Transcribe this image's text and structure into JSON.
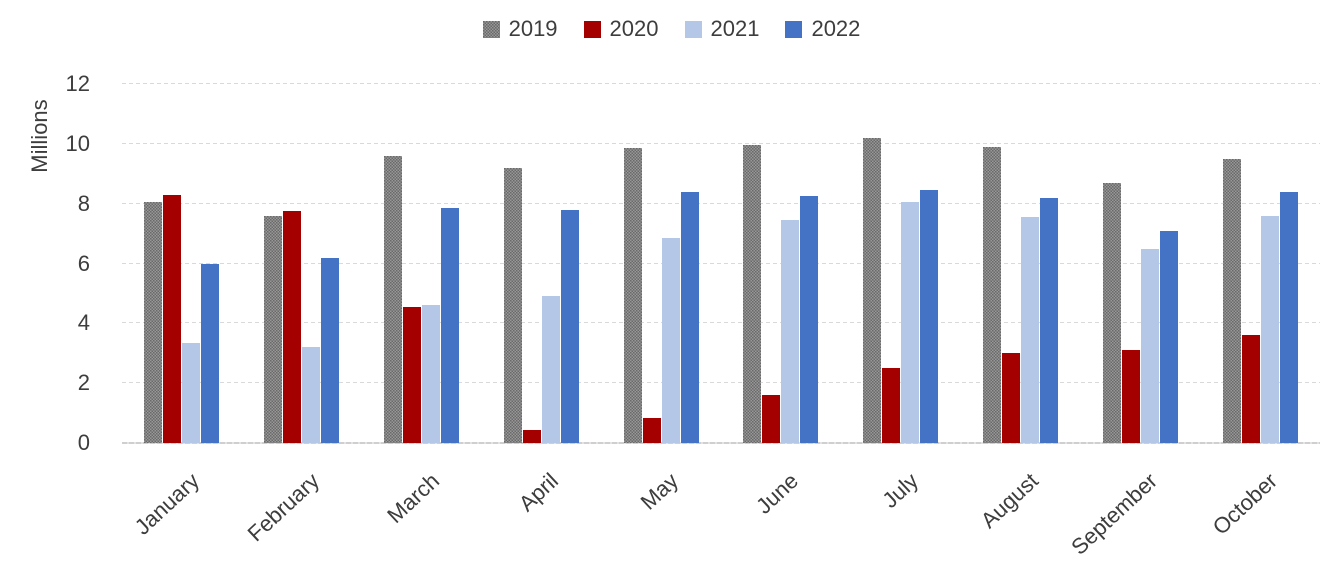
{
  "chart_data": {
    "type": "bar",
    "title": "",
    "xlabel": "",
    "ylabel": "Millions",
    "ylim": [
      0,
      12
    ],
    "yticks": [
      0,
      2,
      4,
      6,
      8,
      10,
      12
    ],
    "grid": true,
    "legend_position": "top-center",
    "gridline_color": "#D9D9D9",
    "text_color": "#3D3D3D",
    "categories": [
      "January",
      "February",
      "March",
      "April",
      "May",
      "June",
      "July",
      "August",
      "September",
      "October"
    ],
    "series": [
      {
        "name": "2019",
        "color": "#7F7F7F",
        "pattern": "dither",
        "values": [
          8.05,
          7.6,
          9.6,
          9.2,
          9.85,
          9.95,
          10.2,
          9.9,
          8.7,
          9.5
        ]
      },
      {
        "name": "2020",
        "color": "#A40000",
        "pattern": null,
        "values": [
          8.3,
          7.75,
          4.55,
          0.45,
          0.85,
          1.6,
          2.5,
          3.0,
          3.1,
          3.6
        ]
      },
      {
        "name": "2021",
        "color": "#B4C7E7",
        "pattern": null,
        "values": [
          3.35,
          3.2,
          4.6,
          4.9,
          6.85,
          7.45,
          8.05,
          7.55,
          6.5,
          7.6
        ]
      },
      {
        "name": "2022",
        "color": "#4472C4",
        "pattern": null,
        "values": [
          6.0,
          6.2,
          7.85,
          7.8,
          8.4,
          8.25,
          8.45,
          8.2,
          7.1,
          8.4
        ]
      }
    ]
  }
}
